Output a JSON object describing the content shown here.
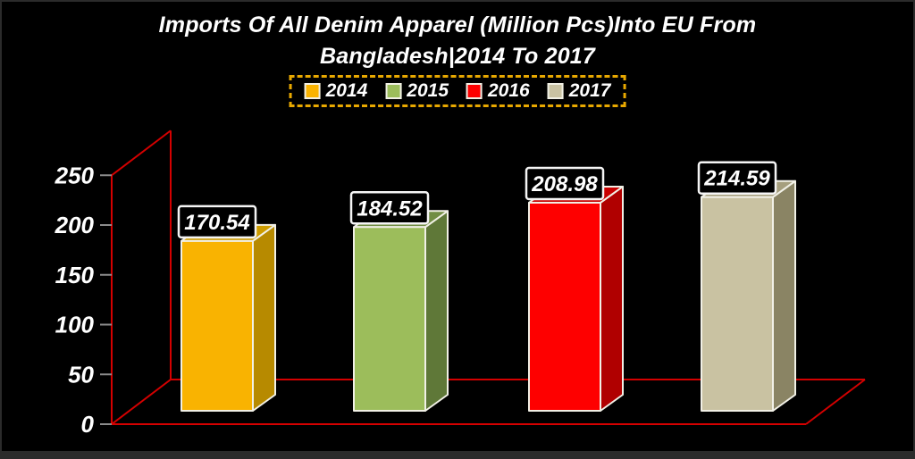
{
  "chrome": {
    "frame_color": "#2b2b2b",
    "background": "#000000"
  },
  "chart_data": {
    "type": "bar",
    "variant": "3d-column",
    "title_line1": "Imports Of All Denim Apparel (Million Pcs)Into EU From",
    "title_line2": "Bangladesh|2014 To 2017",
    "title_color": "#ffffff",
    "categories": [
      "2014",
      "2015",
      "2016",
      "2017"
    ],
    "values": [
      170.54,
      184.52,
      208.98,
      214.59
    ],
    "series": [
      {
        "name": "2014",
        "value": 170.54,
        "label": "170.54",
        "color": "#f9b301",
        "side_color": "#b78a00",
        "top_color": "#cd9c00"
      },
      {
        "name": "2015",
        "value": 184.52,
        "label": "184.52",
        "color": "#9cbd5b",
        "side_color": "#5f7838",
        "top_color": "#718d43"
      },
      {
        "name": "2016",
        "value": 208.98,
        "label": "208.98",
        "color": "#fe0000",
        "side_color": "#b00000",
        "top_color": "#c90000"
      },
      {
        "name": "2017",
        "value": 214.59,
        "label": "214.59",
        "color": "#c9c2a2",
        "side_color": "#8a8464",
        "top_color": "#a69f7e"
      }
    ],
    "ylim": [
      0,
      250
    ],
    "yticks": [
      "0",
      "50",
      "100",
      "150",
      "200",
      "250"
    ],
    "xlabel": "",
    "ylabel": "",
    "grid": "off",
    "legend_position": "top",
    "legend_border_color": "#e8a800",
    "axis_color": "#d40000",
    "tick_color": "#8c8c8c",
    "tick_label_color": "#ffffff",
    "bar_outline_color": "#f1f0e6",
    "value_label_box": {
      "fill": "#000000",
      "border": "#f5f5f5",
      "text_color": "#ffffff"
    }
  }
}
